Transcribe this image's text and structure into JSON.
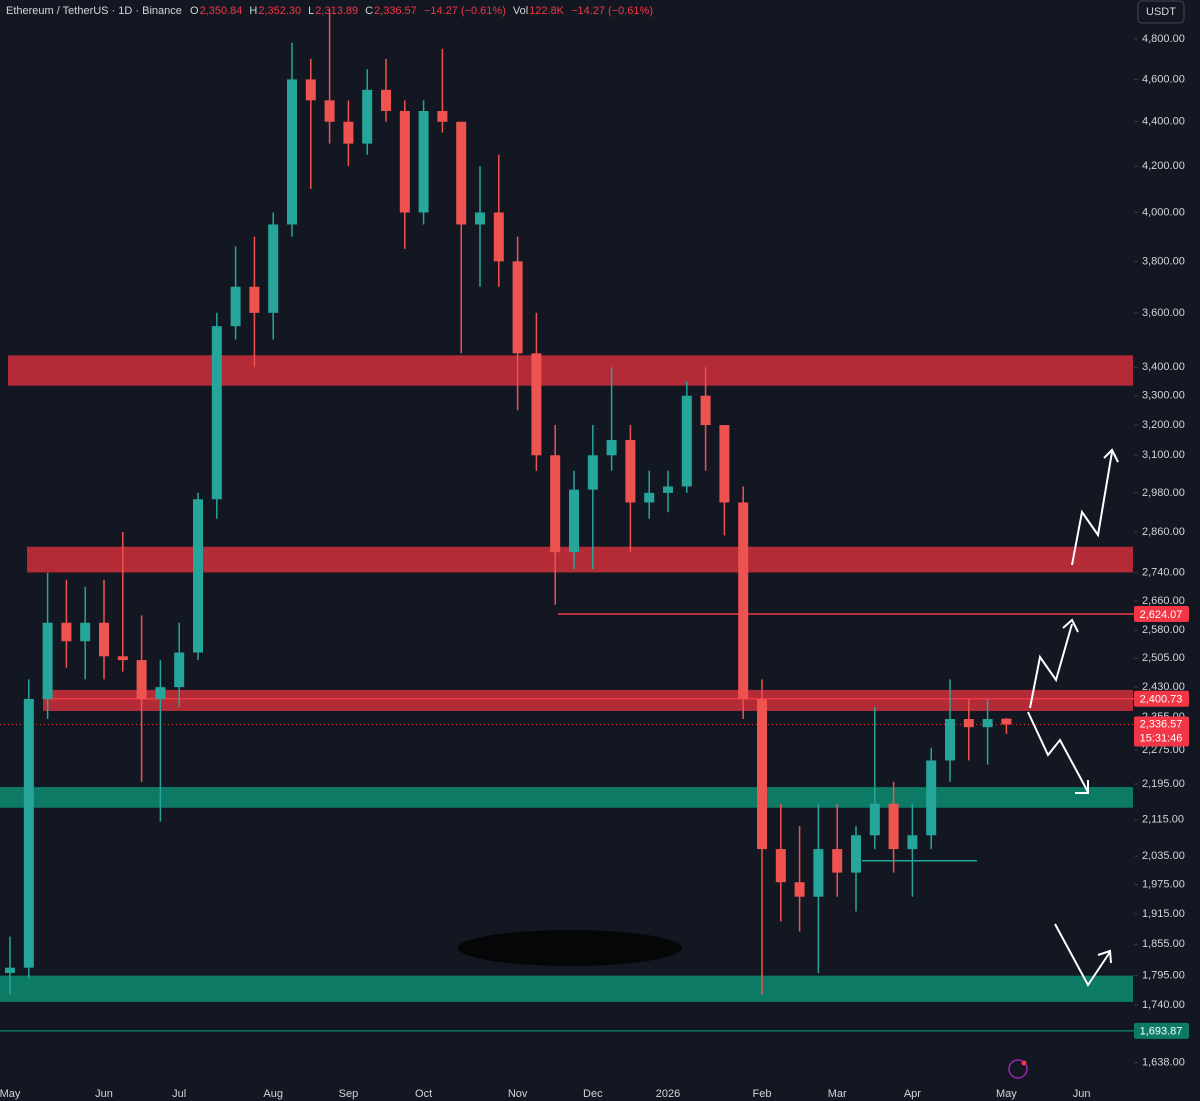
{
  "chart_data": {
    "type": "candlestick",
    "title": "Ethereum / TetherUS · 1D · Binance",
    "header": {
      "o_key": "O",
      "o": "2,350.84",
      "h_key": "H",
      "h": "2,352.30",
      "l_key": "L",
      "l": "2,313.89",
      "c_key": "C",
      "c": "2,336.57",
      "change": "−14.27 (−0.61%)",
      "vol_key": "Vol",
      "vol": "122.8K",
      "vol_change": "−14.27 (−0.61%)"
    },
    "currency_button": "USDT",
    "log_scale": true,
    "up_color": "#26a69a",
    "down_color": "#ef5350",
    "categories": [
      "May",
      null,
      null,
      null,
      null,
      "Jun",
      null,
      null,
      null,
      "Jul",
      null,
      null,
      null,
      null,
      "Aug",
      null,
      null,
      null,
      "Sep",
      null,
      null,
      null,
      "Oct",
      null,
      null,
      null,
      null,
      "Nov",
      null,
      null,
      null,
      "Dec",
      null,
      null,
      null,
      "2026",
      null,
      null,
      null,
      null,
      "Feb",
      null,
      null,
      null,
      "Mar",
      null,
      null,
      null,
      "Apr",
      null,
      null,
      null,
      null,
      "May",
      null,
      null,
      null,
      "Jun"
    ],
    "open": [
      1800,
      1810,
      2400,
      2600,
      2550,
      2600,
      2510,
      2500,
      2400,
      2430,
      2520,
      2960,
      3550,
      3700,
      3600,
      3950,
      4600,
      4500,
      4400,
      4300,
      4550,
      4450,
      4000,
      4450,
      4400,
      3950,
      4000,
      3800,
      3450,
      3100,
      2800,
      2990,
      3100,
      3150,
      2950,
      2980,
      3000,
      3300,
      3200,
      2950,
      2400,
      2050,
      1980,
      1950,
      2050,
      2000,
      2080,
      2150,
      2050,
      2080,
      2250,
      2350,
      2330,
      2350.84,
      null,
      null,
      null,
      null
    ],
    "high": [
      1870,
      2450,
      2740,
      2720,
      2700,
      2720,
      2860,
      2620,
      2500,
      2600,
      2980,
      3600,
      3860,
      3900,
      4000,
      4780,
      4700,
      4950,
      4500,
      4650,
      4700,
      4500,
      4500,
      4750,
      4400,
      4200,
      4250,
      3900,
      3600,
      3200,
      3050,
      3200,
      3400,
      3200,
      3050,
      3050,
      3350,
      3400,
      3200,
      3000,
      2450,
      2150,
      2100,
      2150,
      2150,
      2100,
      2380,
      2200,
      2150,
      2280,
      2450,
      2400,
      2400,
      2352.3,
      null,
      null,
      null,
      null
    ],
    "low": [
      1760,
      1790,
      2350,
      2480,
      2450,
      2450,
      2470,
      2200,
      2110,
      2380,
      2500,
      2900,
      3500,
      3400,
      3500,
      3900,
      4100,
      4300,
      4200,
      4250,
      4400,
      3850,
      3950,
      4350,
      3450,
      3700,
      3700,
      3250,
      3050,
      2650,
      2750,
      2750,
      3050,
      2800,
      2900,
      2920,
      2980,
      3050,
      2850,
      2350,
      1760,
      1900,
      1880,
      1800,
      1950,
      1920,
      2050,
      2000,
      1950,
      2050,
      2200,
      2250,
      2240,
      2313.89,
      null,
      null,
      null,
      null
    ],
    "close": [
      1810,
      2400,
      2600,
      2550,
      2600,
      2510,
      2500,
      2400,
      2430,
      2520,
      2960,
      3550,
      3700,
      3600,
      3950,
      4600,
      4500,
      4400,
      4300,
      4550,
      4450,
      4000,
      4450,
      4400,
      3950,
      4000,
      3800,
      3450,
      3100,
      2800,
      2990,
      3100,
      3150,
      2950,
      2980,
      3000,
      3300,
      3200,
      2950,
      2400,
      2050,
      1980,
      1950,
      2050,
      2000,
      2080,
      2150,
      2050,
      2080,
      2250,
      2350,
      2330,
      2350,
      2336.57,
      null,
      null,
      null,
      null
    ],
    "ylim": [
      1612,
      5000
    ],
    "yticks": [
      {
        "value": 4800,
        "label": "4,800.00"
      },
      {
        "value": 4600,
        "label": "4,600.00"
      },
      {
        "value": 4400,
        "label": "4,400.00"
      },
      {
        "value": 4200,
        "label": "4,200.00"
      },
      {
        "value": 4000,
        "label": "4,000.00"
      },
      {
        "value": 3800,
        "label": "3,800.00"
      },
      {
        "value": 3600,
        "label": "3,600.00"
      },
      {
        "value": 3400,
        "label": "3,400.00"
      },
      {
        "value": 3300,
        "label": "3,300.00"
      },
      {
        "value": 3200,
        "label": "3,200.00"
      },
      {
        "value": 3100,
        "label": "3,100.00"
      },
      {
        "value": 2980,
        "label": "2,980.00"
      },
      {
        "value": 2860,
        "label": "2,860.00"
      },
      {
        "value": 2740,
        "label": "2,740.00"
      },
      {
        "value": 2660,
        "label": "2,660.00"
      },
      {
        "value": 2580,
        "label": "2,580.00"
      },
      {
        "value": 2505,
        "label": "2,505.00"
      },
      {
        "value": 2430,
        "label": "2,430.00"
      },
      {
        "value": 2355,
        "label": "2,355.00"
      },
      {
        "value": 2275,
        "label": "2,275.00"
      },
      {
        "value": 2195,
        "label": "2,195.00"
      },
      {
        "value": 2115,
        "label": "2,115.00"
      },
      {
        "value": 2035,
        "label": "2,035.00"
      },
      {
        "value": 1975,
        "label": "1,975.00"
      },
      {
        "value": 1915,
        "label": "1,915.00"
      },
      {
        "value": 1855,
        "label": "1,855.00"
      },
      {
        "value": 1795,
        "label": "1,795.00"
      },
      {
        "value": 1740,
        "label": "1,740.00"
      },
      {
        "value": 1638,
        "label": "1,638.00"
      }
    ],
    "zones": [
      {
        "from": 3335,
        "to": 3443,
        "color": "#b22b37"
      },
      {
        "from": 2741,
        "to": 2816,
        "color": "#b22b37"
      },
      {
        "from": 2370,
        "to": 2423,
        "color": "#b22b37"
      },
      {
        "from": 2141,
        "to": 2188,
        "color": "#0d7a65"
      },
      {
        "from": 1746,
        "to": 1795,
        "color": "#0d7a65"
      }
    ],
    "levels": [
      {
        "value": 2624.07,
        "label": "2,624.07",
        "color": "#f23645"
      },
      {
        "value": 2400.73,
        "label": "2,400.73",
        "color": "#f23645"
      },
      {
        "value": 2025,
        "color": "#26a69a"
      },
      {
        "value": 1693.87,
        "label": "1,693.87",
        "color": "#0d7a65"
      }
    ],
    "current_price": {
      "value": 2336.57,
      "label": "2,336.57",
      "countdown": "15:31:46",
      "color": "#f23645"
    }
  }
}
